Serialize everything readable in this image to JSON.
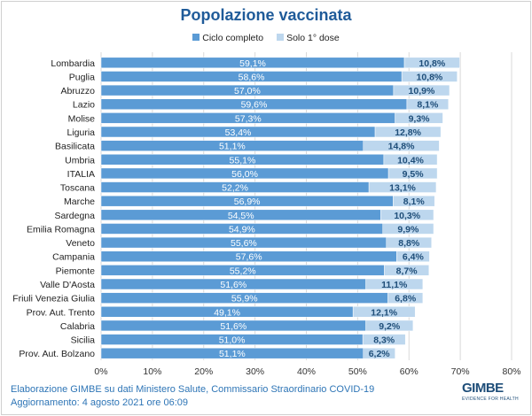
{
  "chart_data": {
    "type": "bar",
    "orientation": "horizontal",
    "stacked": true,
    "title": "Popolazione vaccinata",
    "categories": [
      "Lombardia",
      "Puglia",
      "Abruzzo",
      "Lazio",
      "Molise",
      "Liguria",
      "Basilicata",
      "Umbria",
      "ITALIA",
      "Toscana",
      "Marche",
      "Sardegna",
      "Emilia Romagna",
      "Veneto",
      "Campania",
      "Piemonte",
      "Valle D'Aosta",
      "Friuli Venezia Giulia",
      "Prov. Aut. Trento",
      "Calabria",
      "Sicilia",
      "Prov. Aut. Bolzano"
    ],
    "series": [
      {
        "name": "Ciclo completo",
        "color": "#5b9bd5",
        "values": [
          59.1,
          58.6,
          57.0,
          59.6,
          57.3,
          53.4,
          51.1,
          55.1,
          56.0,
          52.2,
          56.9,
          54.5,
          54.9,
          55.6,
          57.6,
          55.2,
          51.6,
          55.9,
          49.1,
          51.6,
          51.0,
          51.1
        ],
        "labels": [
          "59,1%",
          "58,6%",
          "57,0%",
          "59,6%",
          "57,3%",
          "53,4%",
          "51,1%",
          "55,1%",
          "56,0%",
          "52,2%",
          "56,9%",
          "54,5%",
          "54,9%",
          "55,6%",
          "57,6%",
          "55,2%",
          "51,6%",
          "55,9%",
          "49,1%",
          "51,6%",
          "51,0%",
          "51,1%"
        ]
      },
      {
        "name": "Solo 1° dose",
        "color": "#bdd7ee",
        "values": [
          10.8,
          10.8,
          10.9,
          8.1,
          9.3,
          12.8,
          14.8,
          10.4,
          9.5,
          13.1,
          8.1,
          10.3,
          9.9,
          8.8,
          6.4,
          8.7,
          11.1,
          6.8,
          12.1,
          9.2,
          8.3,
          6.2
        ],
        "labels": [
          "10,8%",
          "10,8%",
          "10,9%",
          "8,1%",
          "9,3%",
          "12,8%",
          "14,8%",
          "10,4%",
          "9,5%",
          "13,1%",
          "8,1%",
          "10,3%",
          "9,9%",
          "8,8%",
          "6,4%",
          "8,7%",
          "11,1%",
          "6,8%",
          "12,1%",
          "9,2%",
          "8,3%",
          "6,2%"
        ]
      }
    ],
    "xlim": [
      0,
      80
    ],
    "xticks": [
      "0%",
      "10%",
      "20%",
      "30%",
      "40%",
      "50%",
      "60%",
      "70%",
      "80%"
    ],
    "grid": true,
    "legend": "top"
  },
  "footer": {
    "source": "Elaborazione GIMBE su dati Ministero Salute, Commissario Straordinario COVID-19",
    "updated": "Aggiornamento: 4 agosto 2021 ore 06:09"
  },
  "logo": {
    "name": "GIMBE",
    "tagline": "EVIDENCE FOR HEALTH"
  }
}
